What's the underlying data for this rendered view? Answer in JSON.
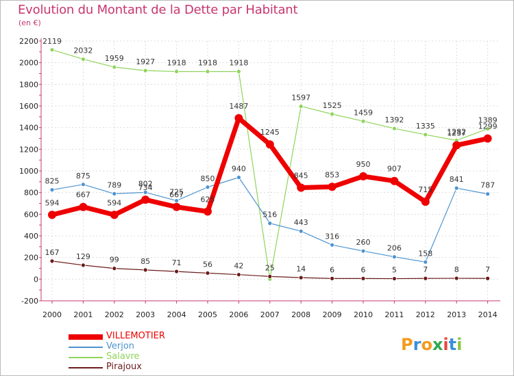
{
  "title": "Evolution du Montant de la Dette par Habitant",
  "subtitle": "(en €)",
  "logo": {
    "letters": [
      "P",
      "r",
      "o",
      "x",
      "i",
      "t",
      "i"
    ],
    "colors": [
      "#f59a1e",
      "#3a8fd9",
      "#f59a1e",
      "#2fa84f",
      "#e8463c",
      "#3a8fd9",
      "#8cc63f"
    ]
  },
  "chart_data": {
    "type": "line",
    "x": [
      "2000",
      "2001",
      "2002",
      "2003",
      "2004",
      "2005",
      "2006",
      "2007",
      "2008",
      "2009",
      "2010",
      "2011",
      "2012",
      "2013",
      "2014"
    ],
    "ylim": [
      -200,
      2200
    ],
    "yticks": [
      "-200",
      "0",
      "200",
      "400",
      "600",
      "800",
      "1000",
      "1200",
      "1400",
      "1600",
      "1800",
      "2000",
      "2200"
    ],
    "grid": true,
    "legend_position": "bottom-left",
    "series": [
      {
        "name": "Salavre",
        "color": "#8ed45a",
        "values": [
          2119,
          2032,
          1959,
          1927,
          1918,
          1918,
          1918,
          0,
          1597,
          1525,
          1459,
          1392,
          1335,
          1282,
          1389
        ],
        "labels": [
          "2119",
          "2032",
          "1959",
          "1927",
          "1918",
          "1918",
          "1918",
          "",
          "1597",
          "1525",
          "1459",
          "1392",
          "1335",
          "1282",
          "1389"
        ]
      },
      {
        "name": "Verjon",
        "color": "#4d93cf",
        "values": [
          825,
          875,
          789,
          802,
          725,
          850,
          940,
          516,
          443,
          316,
          260,
          206,
          158,
          841,
          787
        ],
        "labels": [
          "825",
          "875",
          "789",
          "802",
          "725",
          "850",
          "940",
          "516",
          "443",
          "316",
          "260",
          "206",
          "158",
          "841",
          "787"
        ]
      },
      {
        "name": "Pirajoux",
        "color": "#6b1b1b",
        "values": [
          167,
          129,
          99,
          85,
          71,
          56,
          42,
          25,
          14,
          6,
          6,
          5,
          7,
          8,
          7
        ],
        "labels": [
          "167",
          "129",
          "99",
          "85",
          "71",
          "56",
          "42",
          "25",
          "14",
          "6",
          "6",
          "5",
          "7",
          "8",
          "7"
        ]
      },
      {
        "name": "VILLEMOTIER",
        "color": "#ee0000",
        "values": [
          594,
          667,
          594,
          734,
          667,
          625,
          1487,
          1245,
          845,
          853,
          950,
          907,
          715,
          1237,
          1299
        ],
        "labels": [
          "594",
          "667",
          "594",
          "734",
          "667",
          "625",
          "1487",
          "1245",
          "845",
          "853",
          "950",
          "907",
          "715",
          "1237",
          "1299"
        ]
      }
    ]
  }
}
